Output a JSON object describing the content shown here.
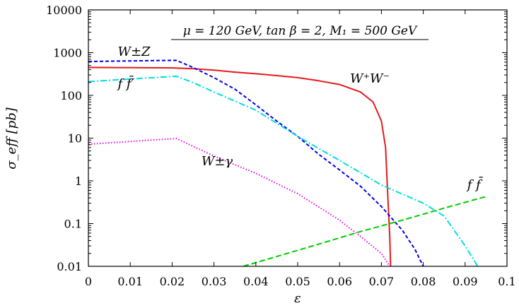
{
  "chart_data": {
    "type": "line",
    "title": "μ = 120 GeV, tan β = 2, M₁ = 500 GeV",
    "xlabel": "ε",
    "ylabel": "σ_eff [pb]",
    "xlim": [
      0,
      0.1
    ],
    "ylim": [
      0.01,
      10000
    ],
    "yscale": "log",
    "grid": false,
    "x_ticks": [
      "0",
      "0.01",
      "0.02",
      "0.03",
      "0.04",
      "0.05",
      "0.06",
      "0.07",
      "0.08",
      "0.09",
      "0.1"
    ],
    "y_ticks": [
      "0.01",
      "0.1",
      "1",
      "10",
      "100",
      "1000",
      "10000"
    ],
    "series": [
      {
        "name": "W⁺W⁻",
        "color": "#e41a1c",
        "dash": "solid",
        "points": [
          [
            0,
            450
          ],
          [
            0.01,
            445
          ],
          [
            0.02,
            440
          ],
          [
            0.025,
            420
          ],
          [
            0.03,
            390
          ],
          [
            0.035,
            350
          ],
          [
            0.04,
            320
          ],
          [
            0.045,
            290
          ],
          [
            0.05,
            260
          ],
          [
            0.055,
            220
          ],
          [
            0.06,
            180
          ],
          [
            0.065,
            120
          ],
          [
            0.068,
            70
          ],
          [
            0.07,
            25
          ],
          [
            0.071,
            6
          ],
          [
            0.0715,
            0.5
          ],
          [
            0.072,
            0.05
          ],
          [
            0.0722,
            0.01
          ]
        ]
      },
      {
        "name": "W±Z",
        "color": "#0000ee",
        "dash": "short-dash",
        "points": [
          [
            0,
            620
          ],
          [
            0.01,
            640
          ],
          [
            0.021,
            660
          ],
          [
            0.025,
            450
          ],
          [
            0.03,
            260
          ],
          [
            0.035,
            140
          ],
          [
            0.04,
            60
          ],
          [
            0.045,
            25
          ],
          [
            0.05,
            11
          ],
          [
            0.055,
            4.2
          ],
          [
            0.06,
            1.8
          ],
          [
            0.065,
            0.75
          ],
          [
            0.07,
            0.25
          ],
          [
            0.072,
            0.15
          ],
          [
            0.075,
            0.07
          ],
          [
            0.078,
            0.025
          ],
          [
            0.08,
            0.01
          ]
        ]
      },
      {
        "name": "f f̄′",
        "color": "#00dddd",
        "dash": "dash-dot",
        "points": [
          [
            0,
            210
          ],
          [
            0.021,
            280
          ],
          [
            0.025,
            200
          ],
          [
            0.03,
            120
          ],
          [
            0.04,
            45
          ],
          [
            0.05,
            11
          ],
          [
            0.06,
            3
          ],
          [
            0.07,
            0.8
          ],
          [
            0.08,
            0.3
          ],
          [
            0.085,
            0.15
          ],
          [
            0.09,
            0.03
          ],
          [
            0.093,
            0.01
          ]
        ]
      },
      {
        "name": "W±γ",
        "color": "#ee00ee",
        "dash": "dotted",
        "points": [
          [
            0,
            7.2
          ],
          [
            0.021,
            9.8
          ],
          [
            0.03,
            3.8
          ],
          [
            0.04,
            1.5
          ],
          [
            0.05,
            0.5
          ],
          [
            0.06,
            0.12
          ],
          [
            0.065,
            0.05
          ],
          [
            0.07,
            0.02
          ],
          [
            0.072,
            0.01
          ]
        ]
      },
      {
        "name": "f f̄",
        "color": "#00cc00",
        "dash": "long-dash",
        "points": [
          [
            0.037,
            0.01
          ],
          [
            0.045,
            0.017
          ],
          [
            0.055,
            0.033
          ],
          [
            0.065,
            0.065
          ],
          [
            0.075,
            0.12
          ],
          [
            0.085,
            0.23
          ],
          [
            0.095,
            0.43
          ]
        ]
      }
    ],
    "annotations": [
      {
        "text": "W⁺W⁻",
        "x": 0.0625,
        "y": 200
      },
      {
        "text": "W±Z",
        "x": 0.007,
        "y": 850
      },
      {
        "text": "f f̄′",
        "x": 0.007,
        "y": 150
      },
      {
        "text": "W±γ",
        "x": 0.027,
        "y": 2.3
      },
      {
        "text": "f f̄",
        "x": 0.0905,
        "y": 0.65
      }
    ]
  }
}
